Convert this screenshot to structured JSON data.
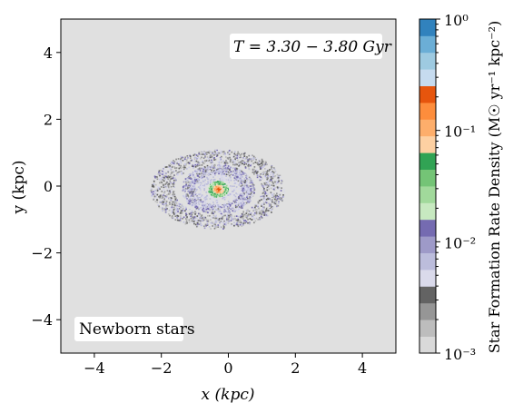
{
  "chart_data": {
    "type": "heatmap",
    "xlabel": "x (kpc)",
    "ylabel": "y (kpc)",
    "xlim": [
      -5,
      5
    ],
    "ylim": [
      -5,
      5
    ],
    "xticks": [
      -4,
      -2,
      0,
      2,
      4
    ],
    "yticks": [
      -4,
      -2,
      0,
      2,
      4
    ],
    "xtick_labels": [
      "−4",
      "−2",
      "0",
      "2",
      "4"
    ],
    "ytick_labels": [
      "−4",
      "−2",
      "0",
      "2",
      "4"
    ],
    "background_color": "#e0e0e0",
    "annotations": {
      "time_window": "T = 3.30 − 3.80 Gyr",
      "panel_label": "Newborn stars"
    },
    "colorbar": {
      "label": "Star Formation Rate Density (M☉ yr⁻¹ kpc⁻²)",
      "scale": "log",
      "range": [
        0.001,
        1
      ],
      "tick_labels": [
        "10⁰",
        "10⁻¹",
        "10⁻²",
        "10⁻³"
      ],
      "tick_values": [
        1,
        0.1,
        0.01,
        0.001
      ],
      "colors": [
        "#d9d9d9",
        "#bdbdbd",
        "#969696",
        "#636363",
        "#dadaeb",
        "#bcbddc",
        "#9e9ac8",
        "#756bb1",
        "#c7e9c0",
        "#a1d99b",
        "#74c476",
        "#31a354",
        "#fdd0a2",
        "#fdae6b",
        "#fd8d3c",
        "#e6550d",
        "#c6dbef",
        "#9ecae1",
        "#6baed6",
        "#3182bd"
      ]
    },
    "structure": {
      "center": [
        -0.3,
        -0.1
      ],
      "components": [
        {
          "name": "outer ring",
          "radius_kpc": [
            1.0,
            1.5
          ],
          "level": "1e-3 to 3e-3"
        },
        {
          "name": "inner ring",
          "radius_kpc": [
            0.55,
            0.85
          ],
          "level": "3e-3 to 2e-2"
        },
        {
          "name": "central disk",
          "radius_kpc": [
            0.0,
            0.3
          ],
          "level": "2e-2 to 2e-1"
        }
      ]
    }
  }
}
